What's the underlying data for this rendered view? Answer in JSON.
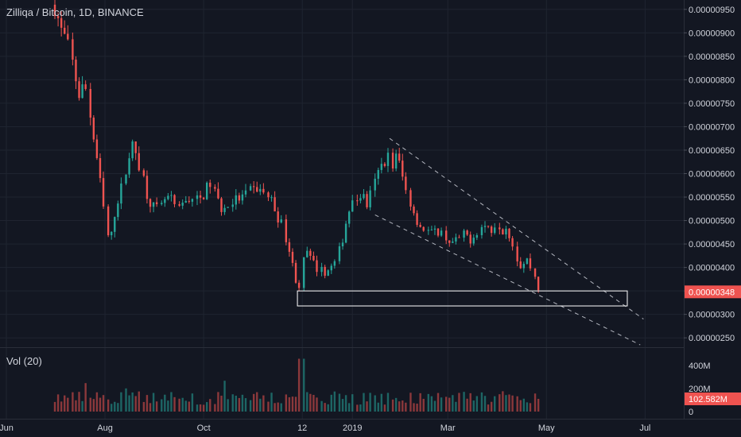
{
  "header": {
    "title": "Zilliqa / Bitcoin, 1D, BINANCE"
  },
  "volume_panel": {
    "label": "Vol (20)"
  },
  "colors": {
    "background": "#131722",
    "up": "#26a69a",
    "down": "#ef5350",
    "grid": "#1f2430",
    "separator": "#2a2e39",
    "text": "#d1d4dc"
  },
  "chart_data": {
    "type": "candlestick",
    "price_axis": {
      "ticks": [
        "0.00000950",
        "0.00000900",
        "0.00000850",
        "0.00000800",
        "0.00000750",
        "0.00000700",
        "0.00000650",
        "0.00000600",
        "0.00000550",
        "0.00000500",
        "0.00000450",
        "0.00000400",
        "0.00000350",
        "0.00000300",
        "0.00000250"
      ],
      "current_price_label": "0.00000348",
      "ylim": [
        2.3e-06,
        9.7e-06
      ]
    },
    "volume_axis": {
      "ticks": [
        "400M",
        "200M",
        "0"
      ],
      "current_volume_label": "102.582M"
    },
    "x_axis": {
      "ticks": [
        "Jun",
        "Aug",
        "Oct",
        "12",
        "2019",
        "Mar",
        "May",
        "Jul"
      ],
      "tick_dates": [
        "2018-06-01",
        "2018-08-01",
        "2018-10-01",
        "2018-12-01",
        "2019-01-01",
        "2019-03-01",
        "2019-05-01",
        "2019-07-01"
      ],
      "xlim": [
        "2018-06-01",
        "2019-07-20"
      ]
    },
    "close_series": [
      [
        "2018-07-01",
        9.6e-06
      ],
      [
        "2018-07-05",
        9.05e-06
      ],
      [
        "2018-07-09",
        8.8e-06
      ],
      [
        "2018-07-13",
        8.2e-06
      ],
      [
        "2018-07-17",
        7.6e-06
      ],
      [
        "2018-07-20",
        8e-06
      ],
      [
        "2018-07-24",
        7e-06
      ],
      [
        "2018-07-28",
        6.2e-06
      ],
      [
        "2018-08-01",
        5.2e-06
      ],
      [
        "2018-08-04",
        4.4e-06
      ],
      [
        "2018-08-08",
        5.3e-06
      ],
      [
        "2018-08-12",
        5.7e-06
      ],
      [
        "2018-08-16",
        6.4e-06
      ],
      [
        "2018-08-19",
        6.6e-06
      ],
      [
        "2018-08-23",
        6.2e-06
      ],
      [
        "2018-08-27",
        5.6e-06
      ],
      [
        "2018-08-31",
        5.3e-06
      ],
      [
        "2018-09-04",
        5.2e-06
      ],
      [
        "2018-09-08",
        5.5e-06
      ],
      [
        "2018-09-12",
        5.4e-06
      ],
      [
        "2018-09-16",
        5.2e-06
      ],
      [
        "2018-09-20",
        5.45e-06
      ],
      [
        "2018-09-24",
        5.5e-06
      ],
      [
        "2018-09-28",
        5.4e-06
      ],
      [
        "2018-10-02",
        5.6e-06
      ],
      [
        "2018-10-06",
        5.8e-06
      ],
      [
        "2018-10-10",
        5.4e-06
      ],
      [
        "2018-10-14",
        5.2e-06
      ],
      [
        "2018-10-18",
        5.4e-06
      ],
      [
        "2018-10-22",
        5.45e-06
      ],
      [
        "2018-10-26",
        5.5e-06
      ],
      [
        "2018-10-30",
        5.6e-06
      ],
      [
        "2018-11-03",
        5.7e-06
      ],
      [
        "2018-11-07",
        5.6e-06
      ],
      [
        "2018-11-11",
        5.5e-06
      ],
      [
        "2018-11-15",
        5.2e-06
      ],
      [
        "2018-11-19",
        4.9e-06
      ],
      [
        "2018-11-23",
        4.4e-06
      ],
      [
        "2018-11-27",
        3.8e-06
      ],
      [
        "2018-11-30",
        3.6e-06
      ],
      [
        "2018-12-03",
        4.4e-06
      ],
      [
        "2018-12-06",
        4.2e-06
      ],
      [
        "2018-12-10",
        4e-06
      ],
      [
        "2018-12-14",
        3.9e-06
      ],
      [
        "2018-12-18",
        3.95e-06
      ],
      [
        "2018-12-22",
        4.1e-06
      ],
      [
        "2018-12-26",
        4.6e-06
      ],
      [
        "2018-12-30",
        5.2e-06
      ],
      [
        "2019-01-03",
        5.4e-06
      ],
      [
        "2019-01-07",
        5.6e-06
      ],
      [
        "2019-01-11",
        5.3e-06
      ],
      [
        "2019-01-14",
        5.7e-06
      ],
      [
        "2019-01-17",
        6e-06
      ],
      [
        "2019-01-20",
        6.2e-06
      ],
      [
        "2019-01-23",
        6.4e-06
      ],
      [
        "2019-01-26",
        6.2e-06
      ],
      [
        "2019-01-29",
        6.4e-06
      ],
      [
        "2019-02-01",
        6e-06
      ],
      [
        "2019-02-04",
        5.6e-06
      ],
      [
        "2019-02-08",
        5.2e-06
      ],
      [
        "2019-02-12",
        4.9e-06
      ],
      [
        "2019-02-16",
        4.8e-06
      ],
      [
        "2019-02-20",
        4.7e-06
      ],
      [
        "2019-02-24",
        4.8e-06
      ],
      [
        "2019-02-28",
        4.65e-06
      ],
      [
        "2019-03-04",
        4.5e-06
      ],
      [
        "2019-03-08",
        4.6e-06
      ],
      [
        "2019-03-12",
        4.7e-06
      ],
      [
        "2019-03-16",
        4.6e-06
      ],
      [
        "2019-03-20",
        4.8e-06
      ],
      [
        "2019-03-24",
        4.9e-06
      ],
      [
        "2019-03-28",
        4.8e-06
      ],
      [
        "2019-04-01",
        5e-06
      ],
      [
        "2019-04-04",
        4.8e-06
      ],
      [
        "2019-04-07",
        4.9e-06
      ],
      [
        "2019-04-10",
        4.6e-06
      ],
      [
        "2019-04-13",
        4.2e-06
      ],
      [
        "2019-04-16",
        4e-06
      ],
      [
        "2019-04-19",
        4.2e-06
      ],
      [
        "2019-04-22",
        4e-06
      ],
      [
        "2019-04-25",
        3.7e-06
      ],
      [
        "2019-04-27",
        3.48e-06
      ]
    ],
    "channel_lines": [
      {
        "style": "dashed",
        "from": [
          "2019-01-24",
          6.75e-06
        ],
        "to": [
          "2019-06-30",
          2.9e-06
        ]
      },
      {
        "style": "dashed",
        "from": [
          "2019-01-15",
          5.12e-06
        ],
        "to": [
          "2019-06-28",
          2.35e-06
        ]
      }
    ],
    "support_zone": {
      "date_range": [
        "2018-11-28",
        "2019-06-20"
      ],
      "price_range": [
        3.18e-06,
        3.5e-06
      ]
    }
  }
}
